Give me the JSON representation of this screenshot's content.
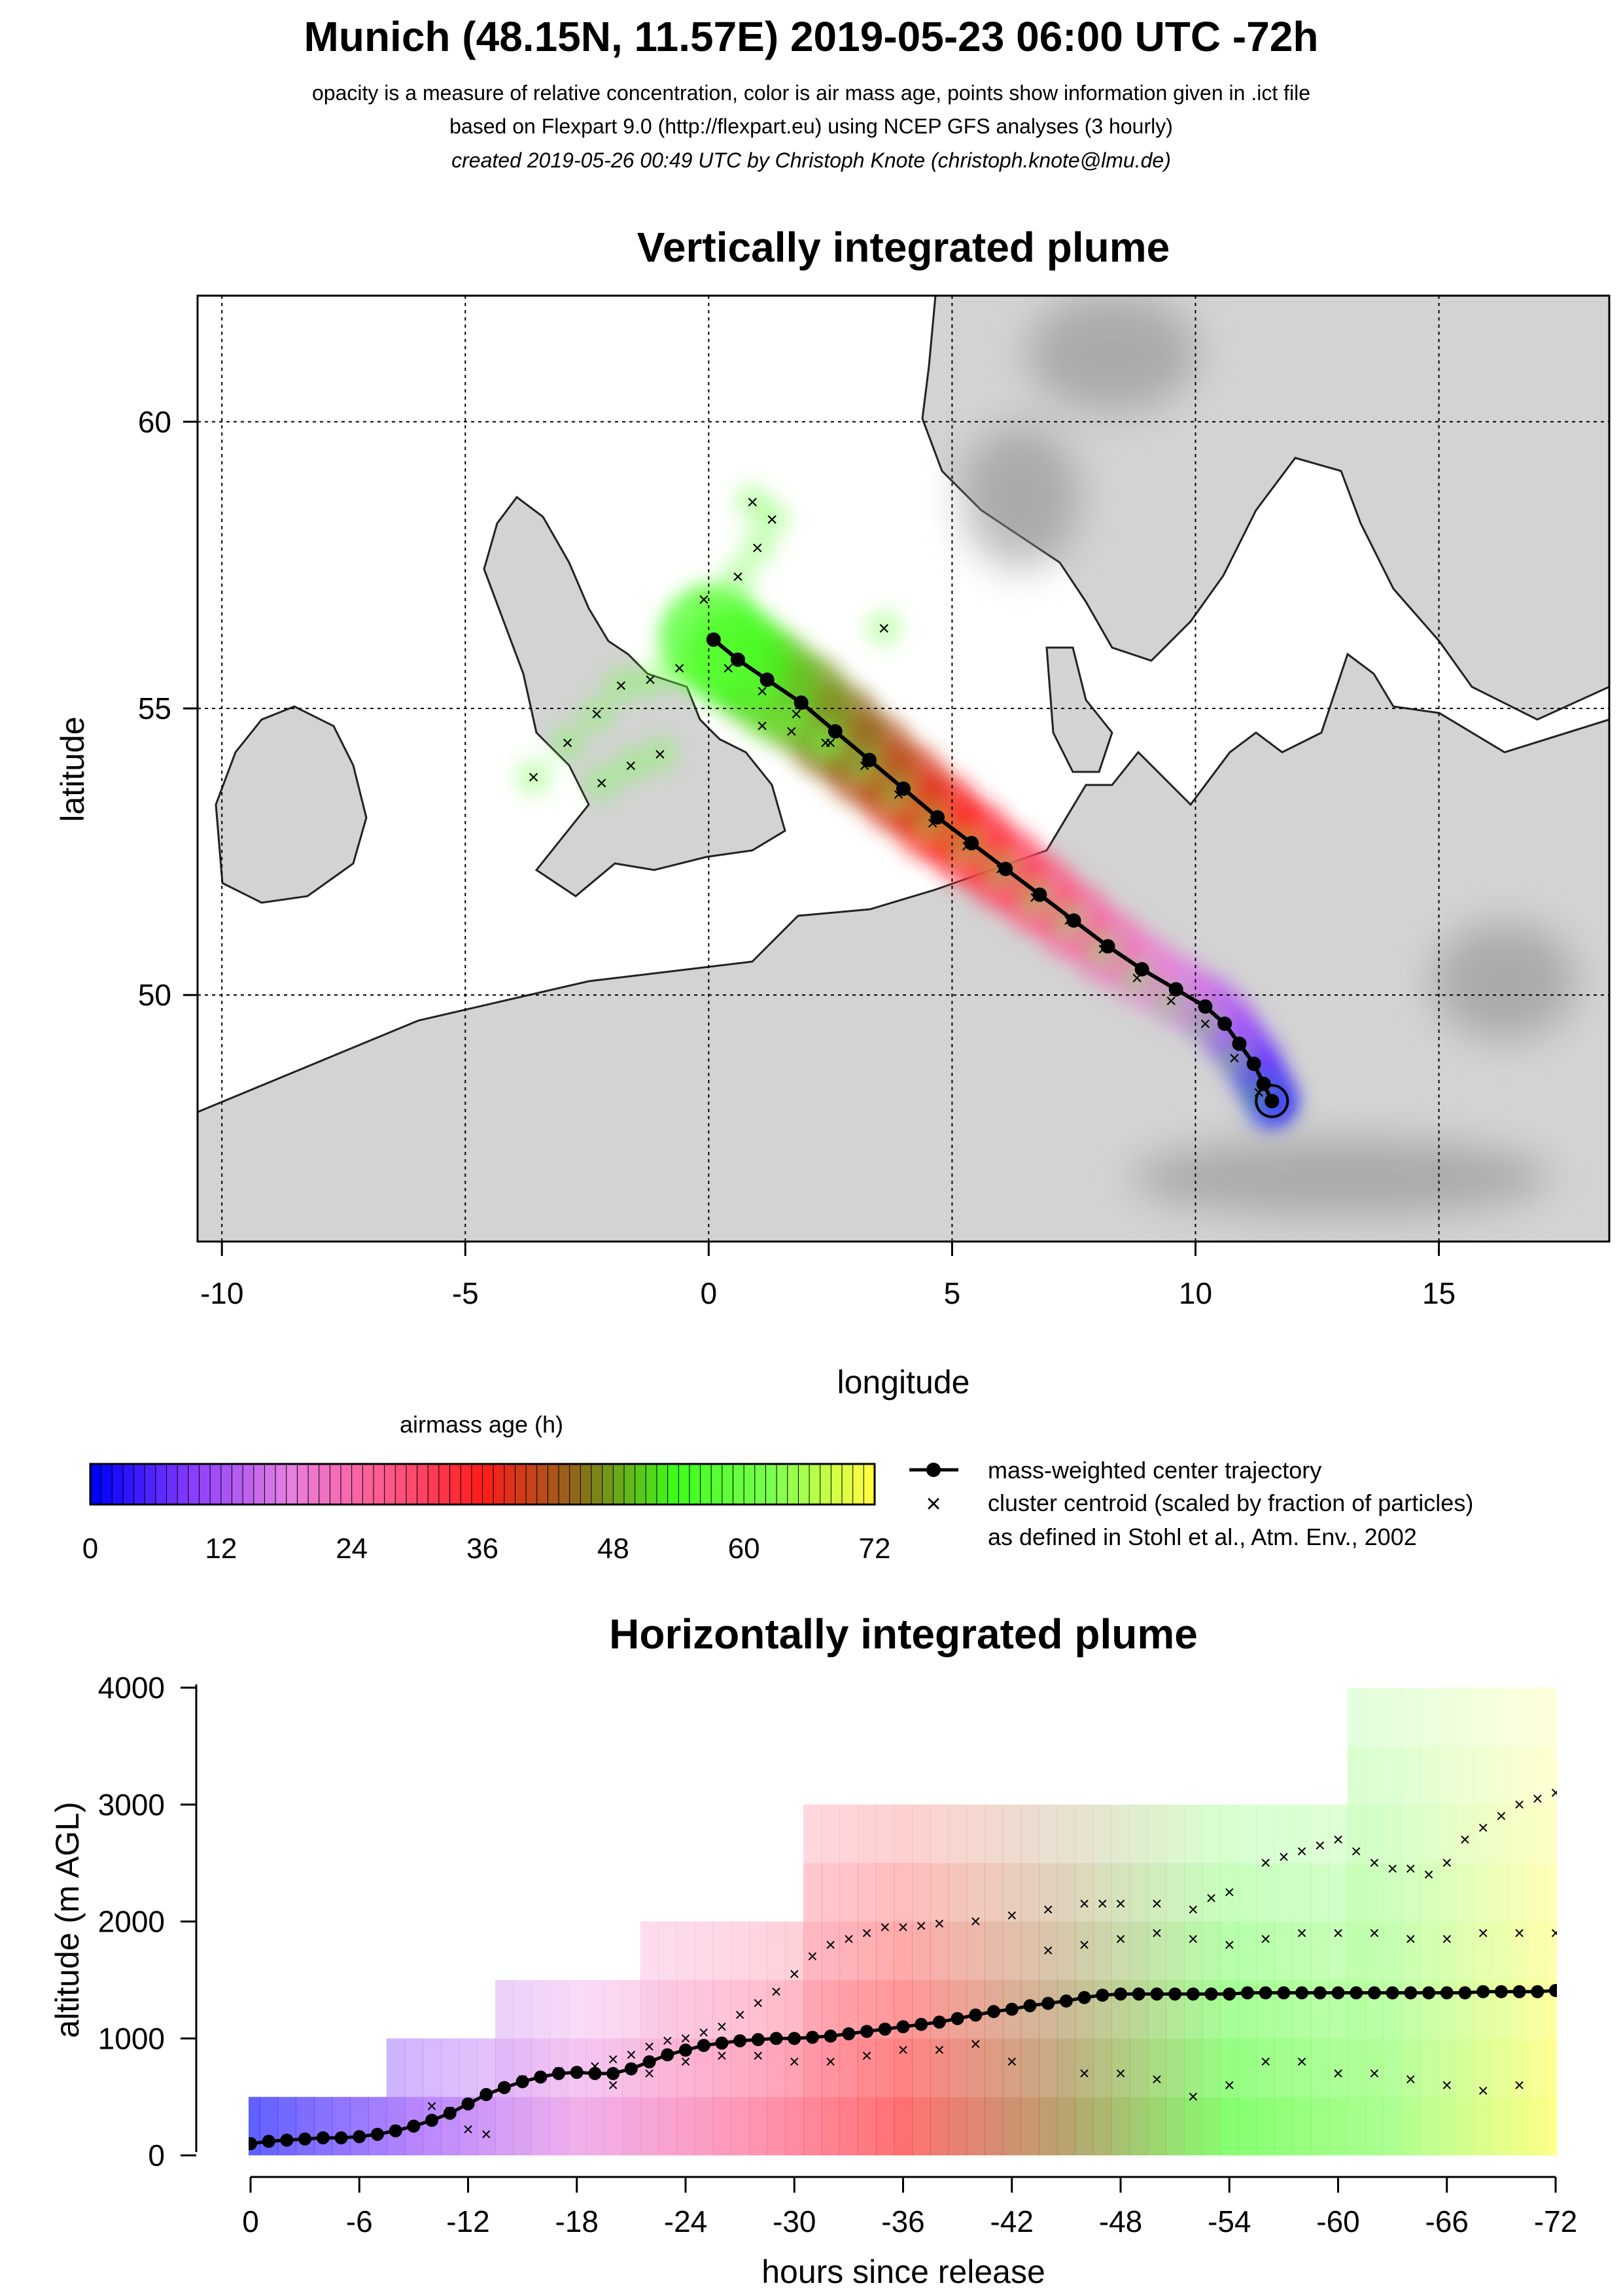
{
  "header": {
    "title": "Munich (48.15N, 11.57E) 2019-05-23 06:00 UTC -72h",
    "line1": "opacity is a measure of relative concentration, color is air mass age, points show information given in .ict file",
    "line2": "based on Flexpart 9.0 (http://flexpart.eu) using NCEP GFS analyses (3 hourly)",
    "line3": "created 2019-05-26 00:49 UTC by Christoph Knote (christoph.knote@lmu.de)"
  },
  "colors": {
    "age_ramp": [
      "#0000ff",
      "#8a3cff",
      "#e680e0",
      "#ff5a8c",
      "#ff1a1a",
      "#8c6a1a",
      "#3cff1a",
      "#7cff50",
      "#ffff40"
    ],
    "land": "#d0d0d0",
    "sea": "#ffffff",
    "trajectory": "#000000"
  },
  "chart_data": [
    {
      "type": "scatter",
      "title": "Vertically integrated plume",
      "xlabel": "longitude",
      "ylabel": "latitude",
      "xlim": [
        -10.5,
        18.5
      ],
      "ylim": [
        45.7,
        62.2
      ],
      "xticks": [
        -10,
        -5,
        0,
        5,
        10,
        15
      ],
      "yticks": [
        50,
        55,
        60
      ],
      "grid": true,
      "release_point": {
        "lon": 11.57,
        "lat": 48.15
      },
      "center_trajectory": {
        "name": "mass-weighted center trajectory",
        "lon": [
          11.57,
          11.4,
          11.2,
          10.9,
          10.6,
          10.2,
          9.6,
          8.9,
          8.2,
          7.5,
          6.8,
          6.1,
          5.4,
          4.7,
          4.0,
          3.3,
          2.6,
          1.9,
          1.2,
          0.6,
          0.1
        ],
        "lat": [
          48.15,
          48.45,
          48.8,
          49.15,
          49.5,
          49.8,
          50.1,
          50.45,
          50.85,
          51.3,
          51.75,
          52.2,
          52.65,
          53.1,
          53.6,
          54.1,
          54.6,
          55.1,
          55.5,
          55.85,
          56.2
        ]
      },
      "cluster_centroids": {
        "name": "cluster centroid (scaled by fraction of particles)",
        "lon": [
          11.3,
          10.8,
          10.2,
          9.5,
          8.8,
          8.1,
          7.4,
          6.7,
          6.0,
          5.3,
          4.6,
          3.9,
          3.2,
          2.5,
          1.8,
          1.1,
          0.4,
          -0.1,
          0.6,
          1.0,
          1.3,
          0.9,
          -0.6,
          -1.2,
          -1.8,
          -2.3,
          -2.9,
          -3.6,
          -1.0,
          -1.6,
          -2.2,
          1.1,
          1.7,
          2.4,
          3.6
        ],
        "lat": [
          48.3,
          48.9,
          49.5,
          49.9,
          50.3,
          50.8,
          51.3,
          51.7,
          52.2,
          52.6,
          53.0,
          53.5,
          54.0,
          54.4,
          54.9,
          55.3,
          55.7,
          56.9,
          57.3,
          57.8,
          58.3,
          58.6,
          55.7,
          55.5,
          55.4,
          54.9,
          54.4,
          53.8,
          54.2,
          54.0,
          53.7,
          54.7,
          54.6,
          54.4,
          56.4
        ]
      }
    },
    {
      "type": "scatter",
      "title": "Horizontally integrated plume",
      "xlabel": "hours since release",
      "ylabel": "altitude (m AGL)",
      "xlim": [
        0,
        -72
      ],
      "ylim": [
        0,
        4000
      ],
      "xticks": [
        0,
        -6,
        -12,
        -18,
        -24,
        -30,
        -36,
        -42,
        -48,
        -54,
        -60,
        -66,
        -72
      ],
      "yticks": [
        0,
        1000,
        2000,
        3000,
        4000
      ],
      "center_trajectory": {
        "name": "mass-weighted center trajectory",
        "x": [
          0,
          -1,
          -2,
          -3,
          -4,
          -5,
          -6,
          -7,
          -8,
          -9,
          -10,
          -11,
          -12,
          -13,
          -14,
          -15,
          -16,
          -17,
          -18,
          -19,
          -20,
          -21,
          -22,
          -23,
          -24,
          -25,
          -26,
          -27,
          -28,
          -29,
          -30,
          -31,
          -32,
          -33,
          -34,
          -35,
          -36,
          -37,
          -38,
          -39,
          -40,
          -41,
          -42,
          -43,
          -44,
          -45,
          -46,
          -47,
          -48,
          -49,
          -50,
          -51,
          -52,
          -53,
          -54,
          -55,
          -56,
          -57,
          -58,
          -59,
          -60,
          -61,
          -62,
          -63,
          -64,
          -65,
          -66,
          -67,
          -68,
          -69,
          -70,
          -71,
          -72
        ],
        "y": [
          100,
          120,
          130,
          140,
          150,
          150,
          160,
          180,
          210,
          250,
          300,
          360,
          440,
          520,
          580,
          630,
          670,
          700,
          710,
          700,
          700,
          740,
          800,
          860,
          900,
          940,
          960,
          980,
          990,
          1000,
          1000,
          1010,
          1020,
          1040,
          1060,
          1080,
          1100,
          1120,
          1140,
          1170,
          1200,
          1230,
          1250,
          1280,
          1300,
          1320,
          1350,
          1370,
          1380,
          1380,
          1380,
          1380,
          1380,
          1380,
          1380,
          1390,
          1390,
          1390,
          1390,
          1390,
          1390,
          1390,
          1390,
          1390,
          1390,
          1390,
          1390,
          1390,
          1400,
          1400,
          1400,
          1400,
          1410
        ]
      },
      "cluster_centroids": {
        "name": "cluster centroid (scaled by fraction of particles)",
        "x": [
          -1,
          -3,
          -5,
          -7,
          -9,
          -10,
          -11,
          -12,
          -13,
          -15,
          -17,
          -19,
          -20,
          -21,
          -22,
          -23,
          -24,
          -25,
          -26,
          -27,
          -28,
          -29,
          -30,
          -31,
          -32,
          -33,
          -34,
          -35,
          -36,
          -37,
          -38,
          -40,
          -42,
          -44,
          -46,
          -47,
          -48,
          -50,
          -52,
          -53,
          -54,
          -56,
          -57,
          -58,
          -59,
          -60,
          -61,
          -62,
          -63,
          -64,
          -65,
          -66,
          -67,
          -68,
          -69,
          -70,
          -71,
          -72,
          -44,
          -46,
          -48,
          -50,
          -52,
          -54,
          -56,
          -58,
          -60,
          -62,
          -64,
          -66,
          -68,
          -70,
          -72,
          -20,
          -22,
          -24,
          -26,
          -28,
          -30,
          -32,
          -34,
          -36,
          -38,
          -40,
          -42,
          -46,
          -48,
          -50,
          -52,
          -54,
          -56,
          -58,
          -60,
          -62,
          -64,
          -66,
          -68,
          -70
        ],
        "y": [
          130,
          150,
          160,
          180,
          250,
          420,
          380,
          220,
          180,
          650,
          720,
          760,
          820,
          860,
          930,
          980,
          1000,
          1050,
          1100,
          1200,
          1300,
          1400,
          1550,
          1700,
          1800,
          1850,
          1900,
          1950,
          1950,
          1960,
          1980,
          2000,
          2050,
          2100,
          2150,
          2150,
          2150,
          2150,
          2100,
          2200,
          2250,
          2500,
          2550,
          2600,
          2650,
          2700,
          2600,
          2500,
          2450,
          2450,
          2400,
          2500,
          2700,
          2800,
          2900,
          3000,
          3050,
          3100,
          1750,
          1800,
          1850,
          1900,
          1850,
          1800,
          1850,
          1900,
          1900,
          1900,
          1850,
          1850,
          1900,
          1900,
          1900,
          600,
          700,
          800,
          850,
          850,
          800,
          800,
          850,
          900,
          900,
          950,
          800,
          700,
          700,
          650,
          500,
          600,
          800,
          800,
          700,
          700,
          650,
          600,
          550,
          600
        ]
      }
    }
  ],
  "colorbar": {
    "title": "airmass age (h)",
    "ticks": [
      0,
      12,
      24,
      36,
      48,
      60,
      72
    ]
  },
  "legend": {
    "items": [
      "mass-weighted center trajectory",
      "cluster centroid (scaled by fraction of particles)",
      "as defined in Stohl et al., Atm. Env., 2002"
    ]
  }
}
